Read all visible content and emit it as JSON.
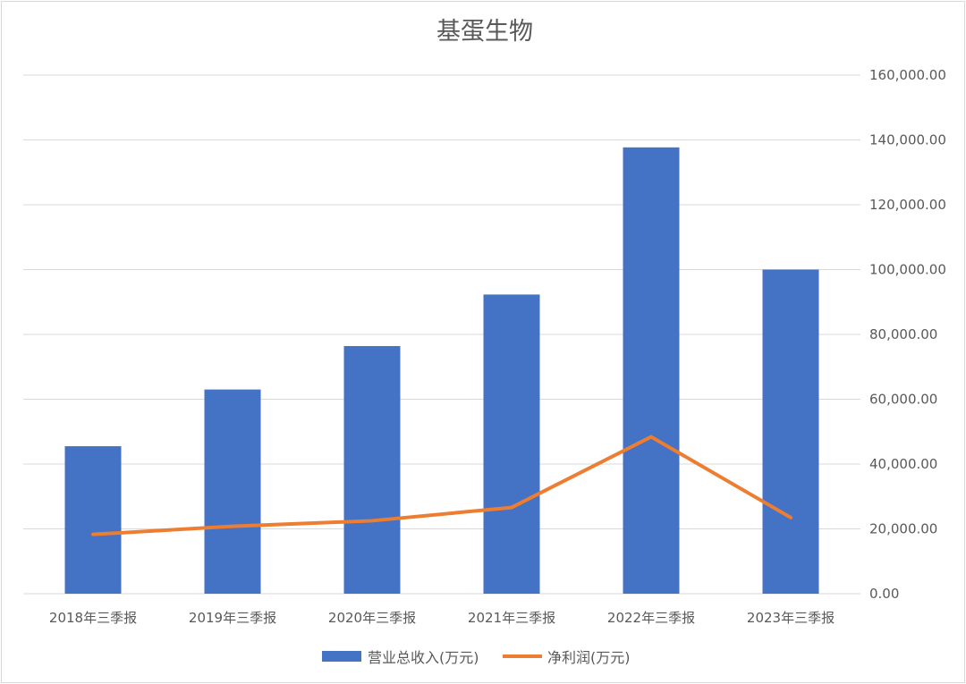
{
  "chart_data": {
    "type": "bar+line",
    "title": "基蛋生物",
    "categories": [
      "2018年三季报",
      "2019年三季报",
      "2020年三季报",
      "2021年三季报",
      "2022年三季报",
      "2023年三季报"
    ],
    "series": [
      {
        "name": "营业总收入(万元)",
        "type": "bar",
        "color": "#4472C4",
        "values": [
          45500,
          63000,
          76400,
          92300,
          137700,
          100000
        ]
      },
      {
        "name": "净利润(万元)",
        "type": "line",
        "color": "#ED7D31",
        "values": [
          18300,
          20800,
          22500,
          26600,
          48400,
          23500
        ]
      }
    ],
    "y_axis": {
      "position": "right",
      "min": 0,
      "max": 160000,
      "tick_labels": [
        "0.00",
        "20,000.00",
        "40,000.00",
        "60,000.00",
        "80,000.00",
        "100,000.00",
        "120,000.00",
        "140,000.00",
        "160,000.00"
      ]
    },
    "grid": true,
    "legend_position": "bottom"
  }
}
